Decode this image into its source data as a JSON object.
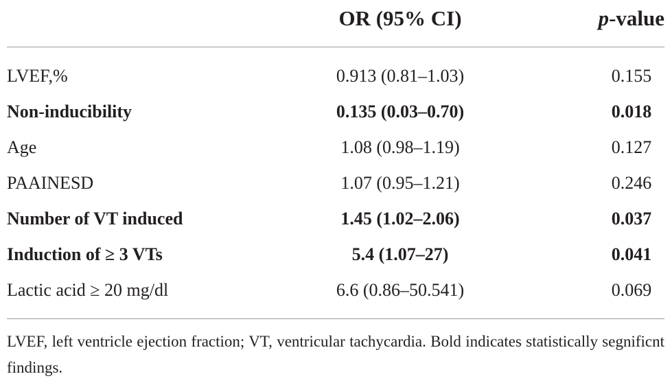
{
  "table": {
    "headers": {
      "or": "OR (95% CI)",
      "p_italic": "p",
      "p_rest": "-value"
    },
    "rows": [
      {
        "label": "LVEF,%",
        "or": "0.913 (0.81–1.03)",
        "p": "0.155",
        "bold": false
      },
      {
        "label": "Non-inducibility",
        "or": "0.135 (0.03–0.70)",
        "p": "0.018",
        "bold": true
      },
      {
        "label": "Age",
        "or": "1.08 (0.98–1.19)",
        "p": "0.127",
        "bold": false
      },
      {
        "label": "PAAINESD",
        "or": "1.07 (0.95–1.21)",
        "p": "0.246",
        "bold": false
      },
      {
        "label": "Number of VT induced",
        "or": "1.45 (1.02–2.06)",
        "p": "0.037",
        "bold": true
      },
      {
        "label": "Induction of ≥ 3 VTs",
        "or": "5.4 (1.07–27)",
        "p": "0.041",
        "bold": true
      },
      {
        "label": "Lactic acid ≥ 20 mg/dl",
        "or": "6.6 (0.86–50.541)",
        "p": "0.069",
        "bold": false
      }
    ]
  },
  "footnote": "LVEF, left ventricle ejection fraction; VT, ventricular tachycardia. Bold indicates statistically segnificnt findings."
}
